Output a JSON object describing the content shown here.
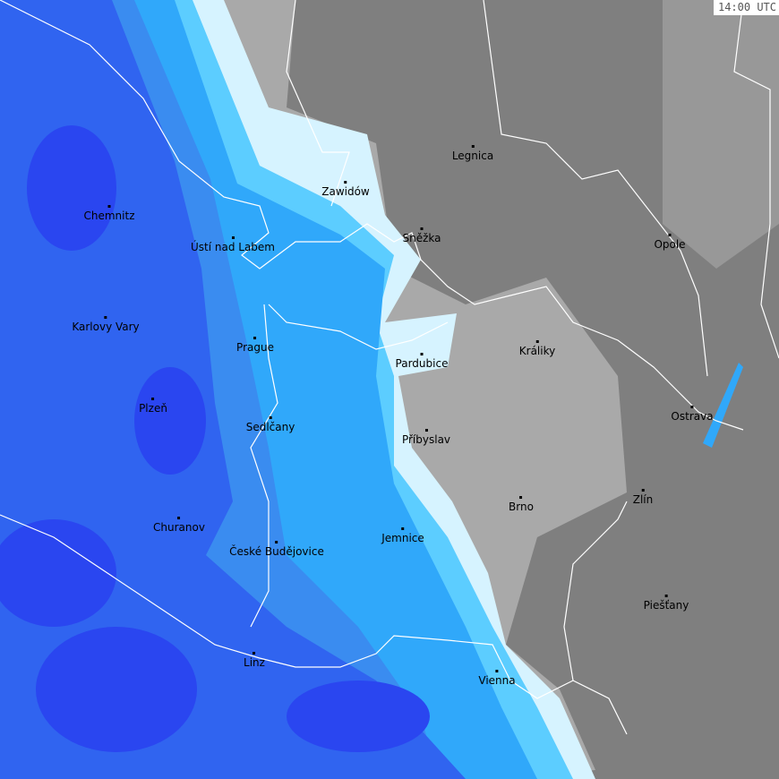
{
  "timestamp": "14:00 UTC",
  "colors": {
    "background_gray": "#7f7f7f",
    "light_gray": "#a9a9a9",
    "pale_cyan": "#d6f3ff",
    "light_blue": "#5ccdff",
    "medium_blue": "#30a8fa",
    "mid_blue": "#3a8cf0",
    "deep_blue": "#3064f0",
    "darkest_blue": "#2a46f0",
    "border": "#ffffff"
  },
  "cities": [
    {
      "name": "Legnica"
    },
    {
      "name": "Zawidów"
    },
    {
      "name": "Chemnitz"
    },
    {
      "name": "Ústí nad Labem"
    },
    {
      "name": "Sněžka"
    },
    {
      "name": "Opole"
    },
    {
      "name": "Karlovy Vary"
    },
    {
      "name": "Prague"
    },
    {
      "name": "Králiky"
    },
    {
      "name": "Pardubice"
    },
    {
      "name": "Plzeň"
    },
    {
      "name": "Sedlčany"
    },
    {
      "name": "Ostrava"
    },
    {
      "name": "Příbyslav"
    },
    {
      "name": "Zlín"
    },
    {
      "name": "Brno"
    },
    {
      "name": "Churanov"
    },
    {
      "name": "Jemnice"
    },
    {
      "name": "České Budějovice"
    },
    {
      "name": "Piešťany"
    },
    {
      "name": "Linz"
    },
    {
      "name": "Vienna"
    }
  ]
}
